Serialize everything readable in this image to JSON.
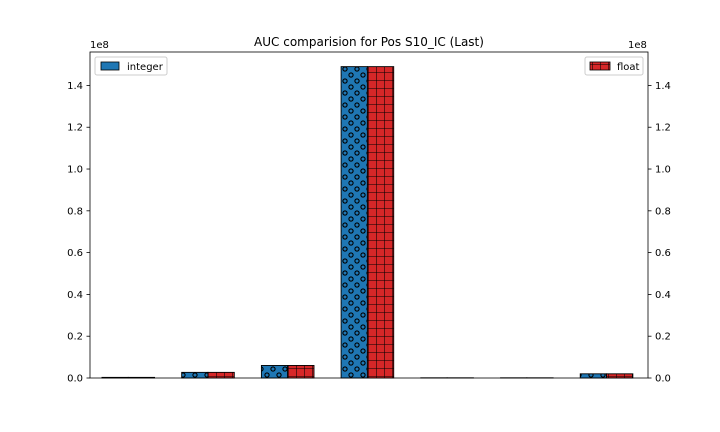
{
  "chart_data": {
    "type": "bar",
    "title": "AUC comparision for Pos S10_IC (Last)",
    "xlabel": "",
    "ylabel": "",
    "categories": [
      "",
      "",
      "",
      "",
      "",
      "",
      ""
    ],
    "series": [
      {
        "name": "integer",
        "values": [
          300000.0,
          2700000.0,
          6000000.0,
          149000000.0,
          100000.0,
          100000.0,
          2000000.0
        ],
        "color": "#1f77b4",
        "hatch": "circles",
        "axis": "left"
      },
      {
        "name": "float",
        "values": [
          300000.0,
          2700000.0,
          6000000.0,
          149000000.0,
          100000.0,
          100000.0,
          2000000.0
        ],
        "color": "#d62728",
        "hatch": "grid",
        "axis": "right"
      }
    ],
    "ylim": [
      0,
      156000000
    ],
    "yticks": [
      0,
      20000000,
      40000000,
      60000000,
      80000000,
      100000000,
      120000000,
      140000000
    ],
    "ytick_labels": [
      "0.0",
      "0.2",
      "0.4",
      "0.6",
      "0.8",
      "1.0",
      "1.2",
      "1.4"
    ],
    "offset_label": "1e8",
    "grid": false,
    "legend": [
      {
        "label": "integer",
        "placement": "top-left"
      },
      {
        "label": "float",
        "placement": "top-right"
      }
    ]
  }
}
